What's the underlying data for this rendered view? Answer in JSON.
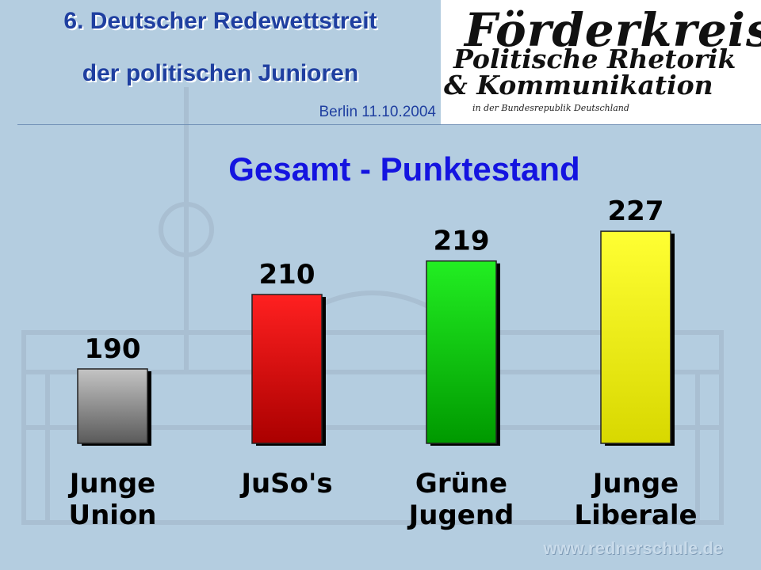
{
  "header": {
    "title_line1": "6. Deutscher Redewettstreit",
    "title_line2": "der politischen Junioren",
    "date": "Berlin  11.10.2004"
  },
  "logo": {
    "line1": "Förderkreis",
    "line2": "Politische Rhetorik",
    "line3": "& Kommunikation",
    "line4": "in der Bundesrepublik Deutschland"
  },
  "footer": {
    "url": "www.rednerschule.de"
  },
  "chart_data": {
    "type": "bar",
    "title": "Gesamt - Punktestand",
    "categories": [
      "Junge Union",
      "JuSo's",
      "Grüne Jugend",
      "Junge Liberale"
    ],
    "category_lines": [
      [
        "Junge",
        "Union"
      ],
      [
        "JuSo's"
      ],
      [
        "Grüne",
        "Jugend"
      ],
      [
        "Junge",
        "Liberale"
      ]
    ],
    "values": [
      190,
      210,
      219,
      227
    ],
    "value_labels": [
      "190",
      "210",
      "219",
      "227"
    ],
    "colors": [
      "#8c8c8c",
      "#e60000",
      "#00cc00",
      "#ffff00"
    ],
    "xlabel": "",
    "ylabel": "",
    "legend": "none",
    "grid": false
  }
}
